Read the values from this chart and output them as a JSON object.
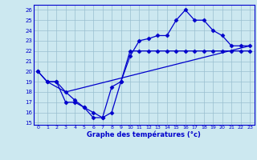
{
  "title": "Graphe des températures (°c)",
  "ylabel_values": [
    15,
    16,
    17,
    18,
    19,
    20,
    21,
    22,
    23,
    24,
    25,
    26
  ],
  "xlabel_values": [
    0,
    1,
    2,
    3,
    4,
    5,
    6,
    7,
    8,
    9,
    10,
    11,
    12,
    13,
    14,
    15,
    16,
    17,
    18,
    19,
    20,
    21,
    22,
    23
  ],
  "line1_x": [
    0,
    1,
    2,
    3,
    4,
    5,
    6,
    7,
    8,
    9,
    10,
    11,
    12,
    13,
    14,
    15,
    16,
    17,
    18,
    19,
    20,
    21,
    22,
    23
  ],
  "line1_y": [
    20,
    19,
    19,
    18,
    17.2,
    16.5,
    15.5,
    15.5,
    18.5,
    19,
    21.5,
    23,
    23.2,
    23.5,
    23.5,
    25,
    26,
    25,
    25,
    24,
    23.5,
    22.5,
    22.5,
    22.5
  ],
  "line2_x": [
    1,
    3,
    23
  ],
  "line2_y": [
    19,
    18,
    22.5
  ],
  "line3_x": [
    0,
    1,
    2,
    3,
    4,
    5,
    6,
    7,
    8,
    9,
    10,
    11,
    12,
    13,
    14,
    15,
    16,
    17,
    18,
    19,
    20,
    21,
    22,
    23
  ],
  "line3_y": [
    20,
    19,
    19,
    17,
    17,
    16.5,
    16,
    15.5,
    16,
    19,
    22,
    22,
    22,
    22,
    22,
    22,
    22,
    22,
    22,
    22,
    22,
    22,
    22,
    22
  ],
  "line_color": "#0000cc",
  "bg_color": "#cce8f0",
  "grid_color": "#99bfd0",
  "xlim": [
    -0.5,
    23.5
  ],
  "ylim": [
    14.8,
    26.5
  ]
}
